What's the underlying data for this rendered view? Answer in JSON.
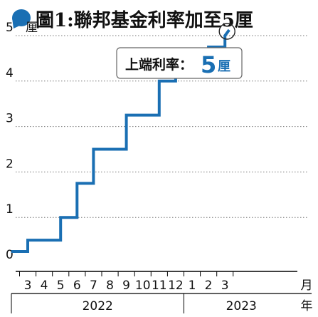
{
  "chart_data": {
    "type": "line",
    "step": true,
    "title": "圖1:聯邦基金利率加至5厘",
    "ylabel": "厘",
    "xlabel": "月",
    "xlabel_suffix": "年",
    "ylim": [
      0,
      5
    ],
    "yticks": [
      0,
      1,
      2,
      3,
      4,
      5
    ],
    "grid": "horizontal-dotted",
    "callout": {
      "prefix": "上端利率：",
      "value": "5",
      "unit": "厘"
    },
    "x_ticks": [
      {
        "label": "3",
        "year": 2022,
        "month": 3
      },
      {
        "label": "4",
        "year": 2022,
        "month": 4
      },
      {
        "label": "5",
        "year": 2022,
        "month": 5
      },
      {
        "label": "6",
        "year": 2022,
        "month": 6
      },
      {
        "label": "7",
        "year": 2022,
        "month": 7
      },
      {
        "label": "8",
        "year": 2022,
        "month": 8
      },
      {
        "label": "9",
        "year": 2022,
        "month": 9
      },
      {
        "label": "10",
        "year": 2022,
        "month": 10
      },
      {
        "label": "11",
        "year": 2022,
        "month": 11
      },
      {
        "label": "12",
        "year": 2022,
        "month": 12
      },
      {
        "label": "1",
        "year": 2023,
        "month": 1
      },
      {
        "label": "2",
        "year": 2023,
        "month": 2
      },
      {
        "label": "3",
        "year": 2023,
        "month": 3
      }
    ],
    "years": [
      {
        "label": "2022",
        "from_month": 1,
        "to_month": 12,
        "year": 2022
      },
      {
        "label": "2023",
        "from_month": 1,
        "to_month": 3,
        "year": 2023
      }
    ],
    "series": [
      {
        "color": "#1a6fb3",
        "points": [
          {
            "x": "2022-02",
            "y": 0.25
          },
          {
            "x": "2022-03",
            "y": 0.5
          },
          {
            "x": "2022-05",
            "y": 1.0
          },
          {
            "x": "2022-06",
            "y": 1.75
          },
          {
            "x": "2022-07",
            "y": 2.5
          },
          {
            "x": "2022-09",
            "y": 3.25
          },
          {
            "x": "2022-11",
            "y": 4.0
          },
          {
            "x": "2022-12",
            "y": 4.5
          },
          {
            "x": "2023-02",
            "y": 4.75
          },
          {
            "x": "2023-03",
            "y": 5.0
          }
        ]
      }
    ]
  },
  "colors": {
    "title_bullet": "#1a6fb3",
    "line": "#1a6fb3",
    "axis": "#000000",
    "grid": "#777777",
    "callout_value": "#1a6fb3",
    "text": "#111111"
  }
}
